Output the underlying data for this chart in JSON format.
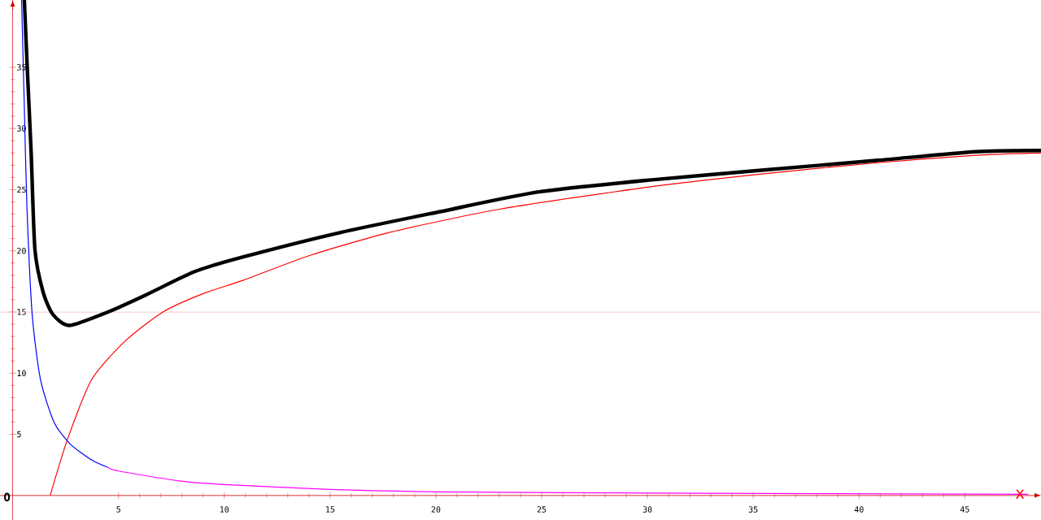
{
  "chart_data": {
    "type": "line",
    "xlabel": "x",
    "annotations": [
      "O"
    ],
    "xlim": [
      -0.6,
      48.6
    ],
    "ylim": [
      -2,
      40.5
    ],
    "xticks": [
      5,
      10,
      15,
      20,
      25,
      30,
      35,
      40,
      45
    ],
    "yticks": [
      5,
      10,
      15,
      20,
      25,
      30,
      35
    ],
    "ref_lines": [
      {
        "axis": "y",
        "value": 15,
        "color": "#f0b8b8"
      }
    ],
    "series": [
      {
        "color": "#ff0000",
        "x": [
          1.77,
          2.59,
          3.74,
          5.3,
          7.1,
          9,
          10.9,
          14,
          17.8,
          23,
          30,
          35.5,
          40.9,
          45.5,
          48.6
        ],
        "values": [
          0,
          4.6,
          9.5,
          12.6,
          15,
          16.5,
          17.6,
          19.6,
          21.5,
          23.4,
          25.2,
          26.3,
          27.2,
          27.8,
          28.0
        ]
      },
      {
        "color": "#ff00ff",
        "x": [
          4.5,
          5,
          7.85,
          10,
          15,
          20,
          30,
          48
        ],
        "values": [
          2.3,
          2.0,
          1.2,
          0.9,
          0.5,
          0.3,
          0.2,
          0.1
        ]
      },
      {
        "color": "#0000ff",
        "x": [
          0.42,
          0.54,
          0.67,
          0.92,
          1.31,
          1.95,
          2.72,
          3.74,
          4.5
        ],
        "values": [
          40.5,
          32.4,
          23.7,
          14.8,
          9.5,
          6.0,
          4.2,
          2.9,
          2.3
        ]
      },
      {
        "color": "#000000",
        "x": [
          0.55,
          0.67,
          0.87,
          1.05,
          1.44,
          1.9,
          2.67,
          4.5,
          6.3,
          8.6,
          10.9,
          15.5,
          20.2,
          24.8,
          30.2,
          35.5,
          40.9,
          45.5,
          48.6
        ],
        "values": [
          40.5,
          35.6,
          28.1,
          20.1,
          16.6,
          14.8,
          13.9,
          15.0,
          16.4,
          18.3,
          19.5,
          21.5,
          23.2,
          24.8,
          25.8,
          26.6,
          27.4,
          28.1,
          28.2
        ]
      }
    ]
  }
}
